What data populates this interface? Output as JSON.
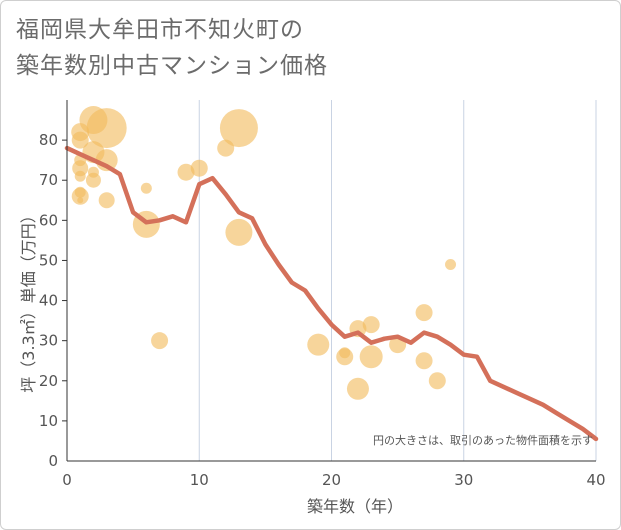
{
  "chart_data": {
    "type": "scatter",
    "title": "福岡県大牟田市不知火町の築年数別中古マンション価格",
    "title_lines": [
      "福岡県大牟田市不知火町の",
      "築年数別中古マンション価格"
    ],
    "xlabel": "築年数（年）",
    "ylabel": "坪（3.3㎡）単価（万円）",
    "xlim": [
      0,
      40
    ],
    "ylim": [
      0,
      90
    ],
    "x_ticks": [
      0,
      10,
      20,
      30,
      40
    ],
    "y_ticks": [
      0,
      10,
      20,
      30,
      40,
      50,
      60,
      70,
      80
    ],
    "grid": "vertical",
    "note": "円の大きさは、取引のあった物件面積を示す",
    "colors": {
      "bubble": "#f2bc5e",
      "line": "#d4705a",
      "grid": "#c9d3e3",
      "axis": "#333333"
    },
    "bubbles": [
      {
        "x": 1,
        "y": 82,
        "size": 18
      },
      {
        "x": 2,
        "y": 85,
        "size": 28
      },
      {
        "x": 3,
        "y": 83,
        "size": 40
      },
      {
        "x": 1,
        "y": 80,
        "size": 17
      },
      {
        "x": 2,
        "y": 77,
        "size": 22
      },
      {
        "x": 1,
        "y": 75,
        "size": 12
      },
      {
        "x": 3,
        "y": 75,
        "size": 22
      },
      {
        "x": 1,
        "y": 73,
        "size": 16
      },
      {
        "x": 1,
        "y": 71,
        "size": 11
      },
      {
        "x": 2,
        "y": 72,
        "size": 11
      },
      {
        "x": 2,
        "y": 70,
        "size": 15
      },
      {
        "x": 1,
        "y": 67,
        "size": 11
      },
      {
        "x": 1,
        "y": 66,
        "size": 17
      },
      {
        "x": 1,
        "y": 65,
        "size": 6
      },
      {
        "x": 3,
        "y": 65,
        "size": 16
      },
      {
        "x": 6,
        "y": 68,
        "size": 11
      },
      {
        "x": 6,
        "y": 59,
        "size": 27
      },
      {
        "x": 7,
        "y": 30,
        "size": 17
      },
      {
        "x": 9,
        "y": 72,
        "size": 17
      },
      {
        "x": 10,
        "y": 73,
        "size": 17
      },
      {
        "x": 12,
        "y": 78,
        "size": 17
      },
      {
        "x": 13,
        "y": 83,
        "size": 38
      },
      {
        "x": 13,
        "y": 57,
        "size": 27
      },
      {
        "x": 19,
        "y": 29,
        "size": 22
      },
      {
        "x": 21,
        "y": 26,
        "size": 17
      },
      {
        "x": 21,
        "y": 27,
        "size": 11
      },
      {
        "x": 22,
        "y": 33,
        "size": 17
      },
      {
        "x": 22,
        "y": 18,
        "size": 22
      },
      {
        "x": 23,
        "y": 34,
        "size": 17
      },
      {
        "x": 23,
        "y": 26,
        "size": 23
      },
      {
        "x": 25,
        "y": 29,
        "size": 17
      },
      {
        "x": 27,
        "y": 37,
        "size": 17
      },
      {
        "x": 27,
        "y": 25,
        "size": 17
      },
      {
        "x": 28,
        "y": 20,
        "size": 17
      },
      {
        "x": 29,
        "y": 49,
        "size": 11
      }
    ],
    "line": [
      {
        "x": 0,
        "y": 78
      },
      {
        "x": 1,
        "y": 76.5
      },
      {
        "x": 2,
        "y": 75
      },
      {
        "x": 3,
        "y": 73.5
      },
      {
        "x": 4,
        "y": 71.5
      },
      {
        "x": 5,
        "y": 62
      },
      {
        "x": 6,
        "y": 59.5
      },
      {
        "x": 7,
        "y": 60
      },
      {
        "x": 8,
        "y": 61
      },
      {
        "x": 9,
        "y": 59.5
      },
      {
        "x": 10,
        "y": 69
      },
      {
        "x": 11,
        "y": 70.5
      },
      {
        "x": 12,
        "y": 66.5
      },
      {
        "x": 13,
        "y": 62
      },
      {
        "x": 14,
        "y": 60.5
      },
      {
        "x": 15,
        "y": 54
      },
      {
        "x": 16,
        "y": 49
      },
      {
        "x": 17,
        "y": 44.5
      },
      {
        "x": 18,
        "y": 42.5
      },
      {
        "x": 19,
        "y": 38
      },
      {
        "x": 20,
        "y": 34
      },
      {
        "x": 21,
        "y": 31
      },
      {
        "x": 22,
        "y": 32
      },
      {
        "x": 23,
        "y": 29.5
      },
      {
        "x": 24,
        "y": 30.5
      },
      {
        "x": 25,
        "y": 31
      },
      {
        "x": 26,
        "y": 29.5
      },
      {
        "x": 27,
        "y": 32
      },
      {
        "x": 28,
        "y": 31
      },
      {
        "x": 29,
        "y": 29
      },
      {
        "x": 30,
        "y": 26.5
      },
      {
        "x": 31,
        "y": 26
      },
      {
        "x": 32,
        "y": 20
      },
      {
        "x": 33,
        "y": 18.5
      },
      {
        "x": 34,
        "y": 17
      },
      {
        "x": 35,
        "y": 15.5
      },
      {
        "x": 36,
        "y": 14
      },
      {
        "x": 37,
        "y": 12
      },
      {
        "x": 38,
        "y": 10
      },
      {
        "x": 39,
        "y": 8
      },
      {
        "x": 40,
        "y": 5.5
      }
    ]
  }
}
